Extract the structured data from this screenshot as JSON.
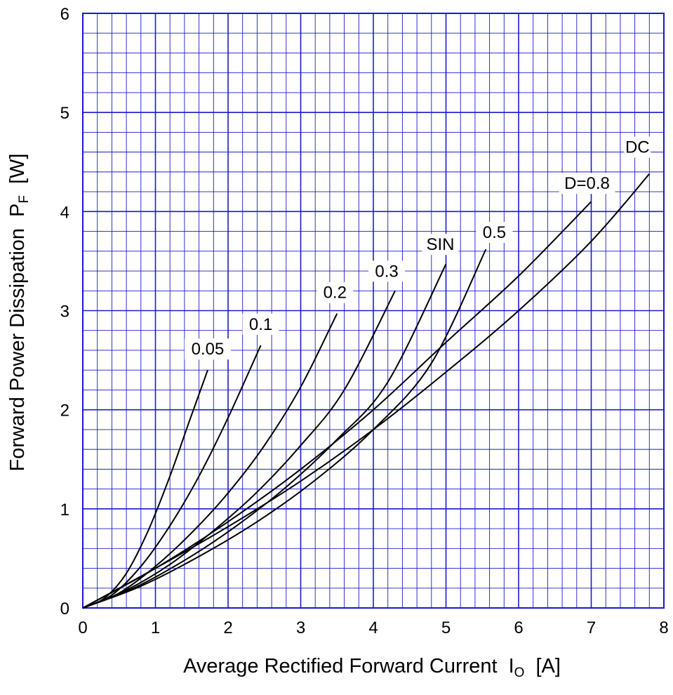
{
  "chart_data": {
    "type": "line",
    "xlabel_main": "Average Rectified Forward Current",
    "xlabel_symbol": "I",
    "xlabel_sub": "O",
    "xlabel_unit": "[A]",
    "ylabel_main": "Forward Power Dissipation",
    "ylabel_symbol": "P",
    "ylabel_sub": "F",
    "ylabel_unit": "[W]",
    "xlim": [
      0,
      8
    ],
    "ylim": [
      0,
      6
    ],
    "x_ticks": [
      "0",
      "1",
      "2",
      "3",
      "4",
      "5",
      "6",
      "7",
      "8"
    ],
    "y_ticks": [
      "0",
      "1",
      "2",
      "3",
      "4",
      "5",
      "6"
    ],
    "grid": true,
    "minor_grid_divisions": 5,
    "grid_color": "#1a1acc",
    "line_color": "#000000",
    "series": [
      {
        "name": "0.05",
        "x": [
          0,
          0.3,
          0.6,
          0.9,
          1.2,
          1.45,
          1.72
        ],
        "y": [
          0,
          0.1,
          0.35,
          0.78,
          1.33,
          1.85,
          2.4
        ]
      },
      {
        "name": "0.1",
        "x": [
          0,
          0.4,
          0.8,
          1.2,
          1.6,
          2.0,
          2.45
        ],
        "y": [
          0,
          0.13,
          0.42,
          0.83,
          1.33,
          1.92,
          2.65
        ]
      },
      {
        "name": "0.2",
        "x": [
          0,
          0.5,
          1.0,
          1.5,
          2.0,
          2.5,
          3.0,
          3.5
        ],
        "y": [
          0,
          0.15,
          0.42,
          0.76,
          1.16,
          1.64,
          2.23,
          2.97
        ]
      },
      {
        "name": "0.3",
        "x": [
          0,
          0.6,
          1.2,
          1.8,
          2.4,
          3.0,
          3.6,
          4.3
        ],
        "y": [
          0,
          0.18,
          0.44,
          0.78,
          1.17,
          1.64,
          2.2,
          3.2
        ]
      },
      {
        "name": "SIN",
        "x": [
          0,
          0.7,
          1.4,
          2.1,
          2.8,
          3.5,
          4.2,
          5.0
        ],
        "y": [
          0,
          0.2,
          0.48,
          0.82,
          1.22,
          1.7,
          2.28,
          3.47
        ]
      },
      {
        "name": "0.5",
        "x": [
          0,
          0.8,
          1.6,
          2.4,
          3.2,
          4.0,
          4.8,
          5.55
        ],
        "y": [
          0,
          0.22,
          0.52,
          0.87,
          1.29,
          1.8,
          2.47,
          3.62
        ]
      },
      {
        "name": "D=0.8",
        "x": [
          0,
          1.0,
          2.0,
          3.0,
          4.0,
          5.0,
          6.0,
          7.0
        ],
        "y": [
          0,
          0.4,
          0.87,
          1.4,
          2.0,
          2.68,
          3.35,
          4.1
        ]
      },
      {
        "name": "DC",
        "x": [
          0,
          1.0,
          2.0,
          3.0,
          4.0,
          5.0,
          6.0,
          7.0,
          7.8
        ],
        "y": [
          0,
          0.4,
          0.82,
          1.28,
          1.8,
          2.38,
          3.0,
          3.7,
          4.38
        ]
      }
    ]
  }
}
